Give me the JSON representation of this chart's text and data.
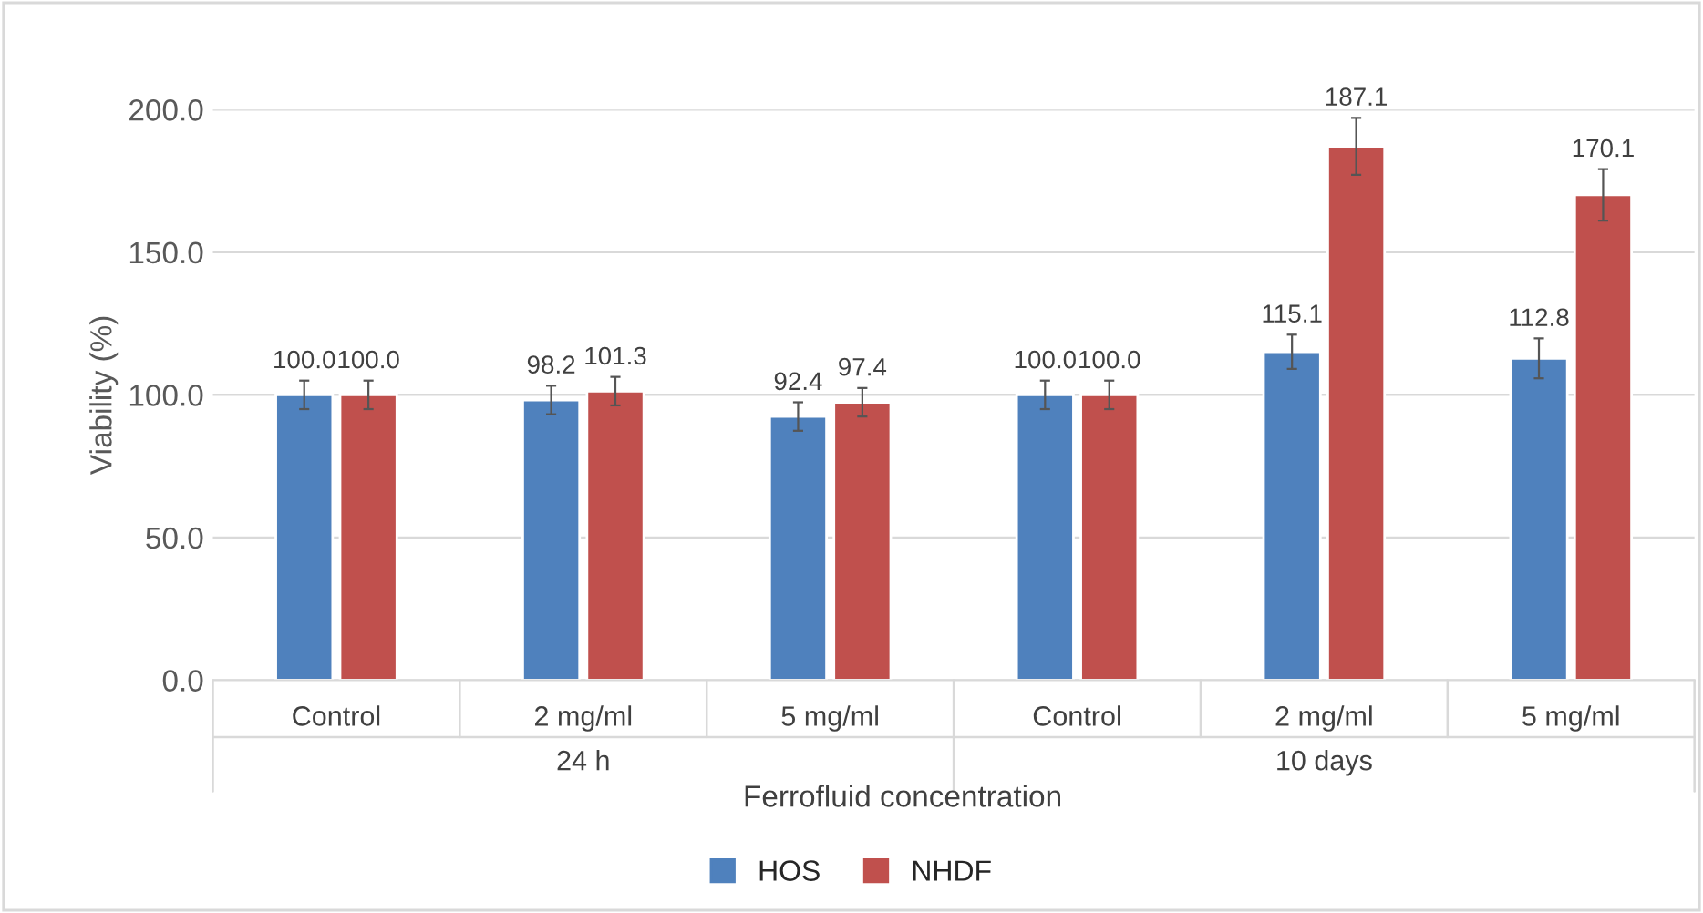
{
  "chart_data": {
    "type": "bar",
    "xlabel": "Ferrofluid concentration",
    "ylabel": "Viability (%)",
    "categories": [
      "Control",
      "2 mg/ml",
      "5 mg/ml",
      "Control",
      "2 mg/ml",
      "5 mg/ml"
    ],
    "annotations": [
      "24 h",
      "10 days"
    ],
    "series": [
      {
        "name": "HOS",
        "color": "#4f81bd",
        "values": [
          100.0,
          98.2,
          92.4,
          100.0,
          115.1,
          112.8
        ],
        "errors": [
          5,
          5,
          5,
          5,
          6,
          7
        ],
        "value_labels": [
          "100.0",
          "98.2",
          "92.4",
          "100.0",
          "115.1",
          "112.8"
        ]
      },
      {
        "name": "NHDF",
        "color": "#c0504d",
        "values": [
          100.0,
          101.3,
          97.4,
          100.0,
          187.1,
          170.1
        ],
        "errors": [
          5,
          5,
          5,
          5,
          10,
          9
        ],
        "value_labels": [
          "100.0",
          "101.3",
          "97.4",
          "100.0",
          "187.1",
          "170.1"
        ]
      }
    ],
    "ylim": [
      0,
      200
    ],
    "yticks": [
      {
        "value": 0,
        "label": "0.0"
      },
      {
        "value": 50,
        "label": "50.0"
      },
      {
        "value": 100,
        "label": "100.0"
      },
      {
        "value": 150,
        "label": "150.0"
      },
      {
        "value": 200,
        "label": "200.0"
      }
    ],
    "grid": "y",
    "legend": "bottom"
  }
}
